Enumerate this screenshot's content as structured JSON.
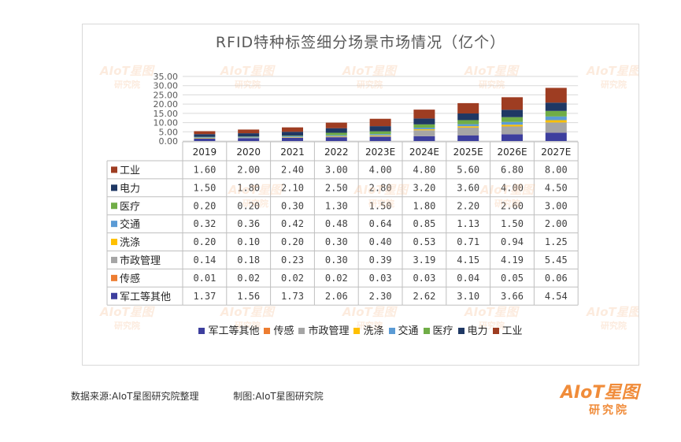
{
  "chart_data": {
    "type": "bar",
    "stacked": true,
    "title": "RFID特种标签细分场景市场情况（亿个）",
    "categories": [
      "2019",
      "2020",
      "2021",
      "2022",
      "2023E",
      "2024E",
      "2025E",
      "2026E",
      "2027E"
    ],
    "ylim": [
      0,
      35
    ],
    "yticks": [
      "0.00",
      "5.00",
      "10.00",
      "15.00",
      "20.00",
      "25.00",
      "30.00",
      "35.00"
    ],
    "grid": true,
    "legend_position": "bottom",
    "series": [
      {
        "name": "军工等其他",
        "color": "#3d3f9e",
        "values": [
          "1.37",
          "1.56",
          "1.73",
          "2.06",
          "2.30",
          "2.62",
          "3.10",
          "3.66",
          "4.54"
        ]
      },
      {
        "name": "传感",
        "color": "#ed7d31",
        "values": [
          "0.01",
          "0.02",
          "0.02",
          "0.02",
          "0.03",
          "0.03",
          "0.04",
          "0.05",
          "0.06"
        ]
      },
      {
        "name": "市政管理",
        "color": "#a5a5a5",
        "values": [
          "0.14",
          "0.18",
          "0.23",
          "0.30",
          "0.39",
          "3.19",
          "4.15",
          "4.19",
          "5.45"
        ]
      },
      {
        "name": "洗涤",
        "color": "#ffc000",
        "values": [
          "0.20",
          "0.10",
          "0.20",
          "0.30",
          "0.40",
          "0.53",
          "0.71",
          "0.94",
          "1.25"
        ]
      },
      {
        "name": "交通",
        "color": "#5b9bd5",
        "values": [
          "0.32",
          "0.36",
          "0.42",
          "0.48",
          "0.64",
          "0.85",
          "1.13",
          "1.50",
          "2.00"
        ]
      },
      {
        "name": "医疗",
        "color": "#70ad47",
        "values": [
          "0.20",
          "0.20",
          "0.30",
          "1.30",
          "1.50",
          "1.80",
          "2.20",
          "2.60",
          "3.00"
        ]
      },
      {
        "name": "电力",
        "color": "#1f3864",
        "values": [
          "1.50",
          "1.80",
          "2.10",
          "2.50",
          "2.80",
          "3.20",
          "3.60",
          "4.00",
          "4.50"
        ]
      },
      {
        "name": "工业",
        "color": "#9e3d22",
        "values": [
          "1.60",
          "2.00",
          "2.40",
          "3.00",
          "4.00",
          "4.80",
          "5.60",
          "6.80",
          "8.00"
        ]
      }
    ],
    "table_row_order": [
      "工业",
      "电力",
      "医疗",
      "交通",
      "洗涤",
      "市政管理",
      "传感",
      "军工等其他"
    ]
  },
  "watermark": {
    "brand": "AIoT星图",
    "sub": "研究院"
  },
  "footer": {
    "source": "数据来源:AIoT星图研究院整理",
    "made_by": "制图:AIoT星图研究院"
  },
  "logo": {
    "main": "AIoT星图",
    "sub": "研究院",
    "color": "#f08c3a"
  }
}
